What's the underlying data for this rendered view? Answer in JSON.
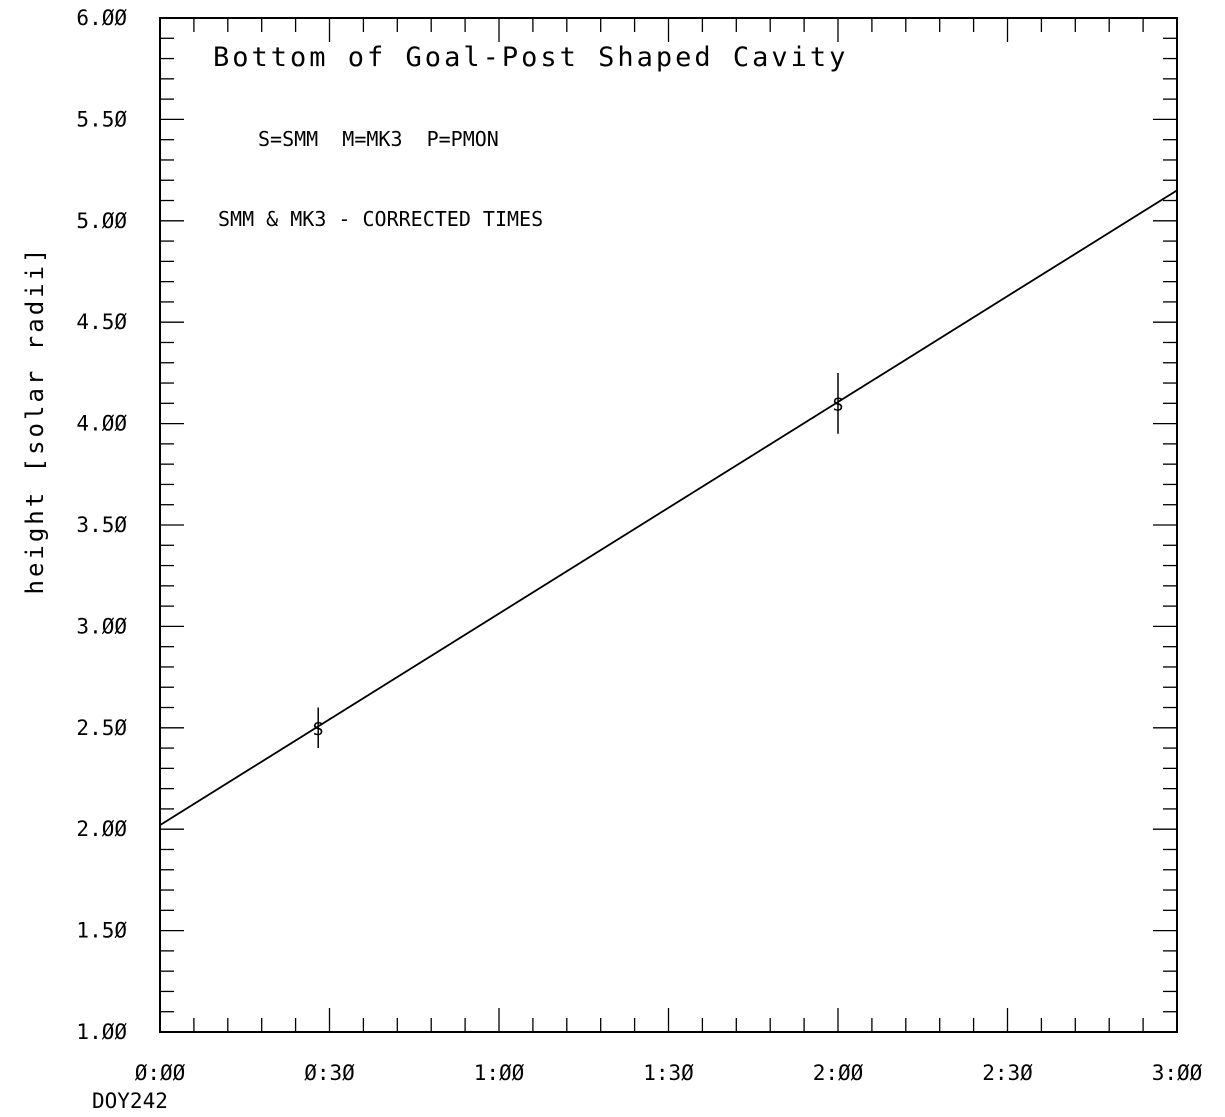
{
  "chart_data": {
    "type": "line",
    "title": "",
    "xlabel": "",
    "ylabel": "height [solar radii]",
    "xlim": [
      "0:00",
      "3:00"
    ],
    "ylim": [
      1.0,
      6.0
    ],
    "grid": false,
    "x_tick_labels": [
      "Ø:ØØ",
      "Ø:3Ø",
      "1:ØØ",
      "1:3Ø",
      "2:ØØ",
      "2:3Ø",
      "3:ØØ"
    ],
    "x_sub_label": "DOY242",
    "y_tick_labels": [
      "1.ØØ",
      "1.5Ø",
      "2.ØØ",
      "2.5Ø",
      "3.ØØ",
      "3.5Ø",
      "4.ØØ",
      "4.5Ø",
      "5.ØØ",
      "5.5Ø",
      "6.ØØ"
    ],
    "annotations": [
      "Bottom of Goal-Post Shaped Cavity",
      "S=SMM  M=MK3  P=PMON",
      "SMM & MK3 - CORRECTED TIMES"
    ],
    "points": [
      {
        "marker": "S",
        "x": "0:28",
        "y": 2.5,
        "err": 0.1
      },
      {
        "marker": "S",
        "x": "2:00",
        "y": 4.1,
        "err": 0.15
      }
    ],
    "fit_line": {
      "x": [
        "0:00",
        "3:00"
      ],
      "y": [
        2.02,
        5.15
      ]
    }
  }
}
